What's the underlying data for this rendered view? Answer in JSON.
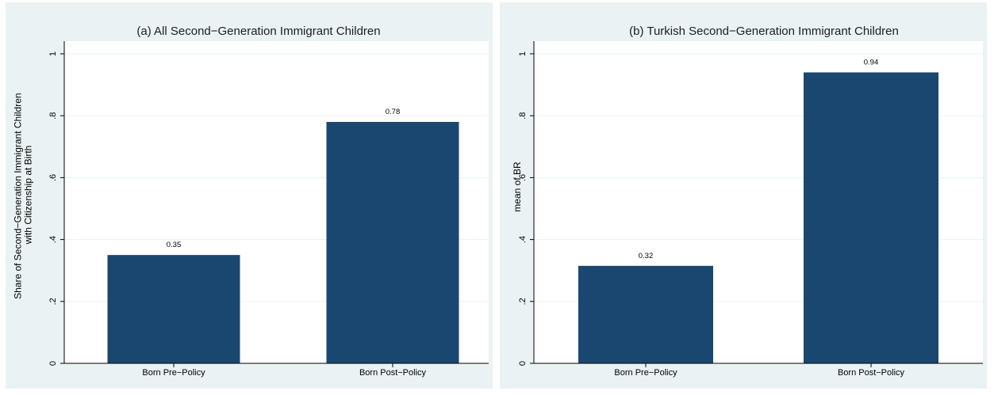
{
  "chart_data": [
    {
      "type": "bar",
      "title": "(a) All Second−Generation Immigrant Children",
      "ylabel_lines": [
        "Share of Second−Generation Immigrant Children",
        "with Citizenship at Birth"
      ],
      "categories": [
        "Born Pre−Policy",
        "Born Post−Policy"
      ],
      "values": [
        0.35,
        0.78
      ],
      "value_labels": [
        "0.35",
        "0.78"
      ],
      "ylim": [
        0,
        1
      ],
      "yticks": [
        0,
        0.2,
        0.4,
        0.6,
        0.8,
        1
      ],
      "ytick_labels": [
        "0",
        ".2",
        ".4",
        ".6",
        ".8",
        "1"
      ],
      "grid": true,
      "bar_color": "#1a476f"
    },
    {
      "type": "bar",
      "title": "(b) Turkish Second−Generation Immigrant Children",
      "ylabel_lines": [
        "mean of BR"
      ],
      "categories": [
        "Born Pre−Policy",
        "Born Post−Policy"
      ],
      "values": [
        0.315,
        0.94
      ],
      "value_labels": [
        "0.32",
        "0.94"
      ],
      "ylim": [
        0,
        1
      ],
      "yticks": [
        0,
        0.2,
        0.4,
        0.6,
        0.8,
        1
      ],
      "ytick_labels": [
        "0",
        ".2",
        ".4",
        ".6",
        ".8",
        "1"
      ],
      "grid": true,
      "bar_color": "#1a476f"
    }
  ]
}
